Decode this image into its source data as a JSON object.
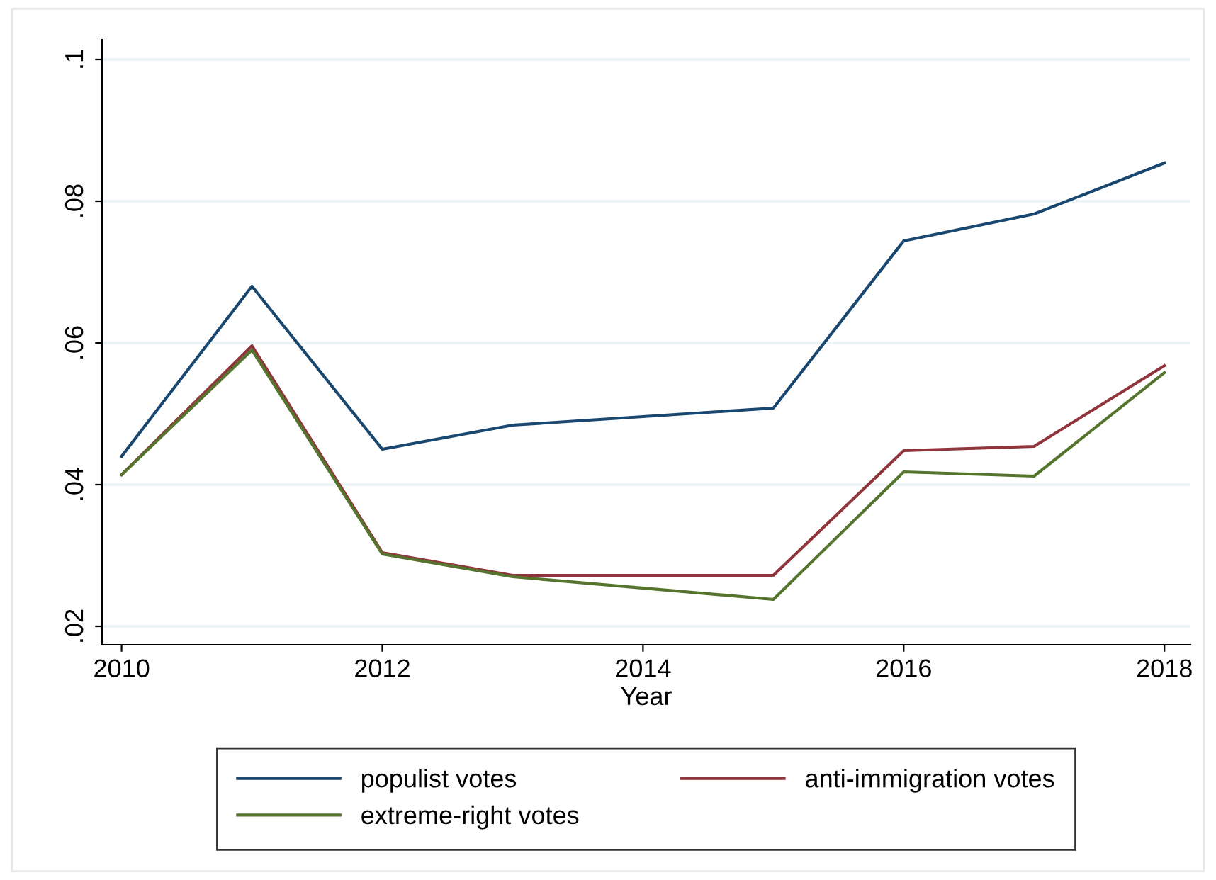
{
  "chart_data": {
    "type": "line",
    "xlabel": "Year",
    "x": [
      2010,
      2011,
      2012,
      2013,
      2015,
      2016,
      2017,
      2018
    ],
    "series": [
      {
        "name": "populist votes",
        "color": "#1a476f",
        "values": [
          0.044,
          0.068,
          0.045,
          0.0484,
          0.0508,
          0.0744,
          0.0782,
          0.0854
        ]
      },
      {
        "name": "anti-immigration votes",
        "color": "#90353b",
        "values": [
          0.0414,
          0.0596,
          0.0304,
          0.0272,
          0.0272,
          0.0448,
          0.0454,
          0.0568
        ]
      },
      {
        "name": "extreme-right votes",
        "color": "#55752f",
        "values": [
          0.0414,
          0.059,
          0.0302,
          0.027,
          0.0238,
          0.0418,
          0.0412,
          0.0558
        ]
      }
    ],
    "xlim": [
      2009.85,
      2018.2
    ],
    "xticks": [
      2010,
      2012,
      2014,
      2016,
      2018
    ],
    "ylim": [
      0.0174,
      0.1028
    ],
    "yticks": [
      {
        "value": 0.02,
        "label": ".02"
      },
      {
        "value": 0.04,
        "label": ".04"
      },
      {
        "value": 0.06,
        "label": ".06"
      },
      {
        "value": 0.08,
        "label": ".08"
      },
      {
        "value": 0.1,
        "label": ".1"
      }
    ],
    "grid": "y",
    "legend": "bottom",
    "marker": "none",
    "line_style": "solid"
  }
}
